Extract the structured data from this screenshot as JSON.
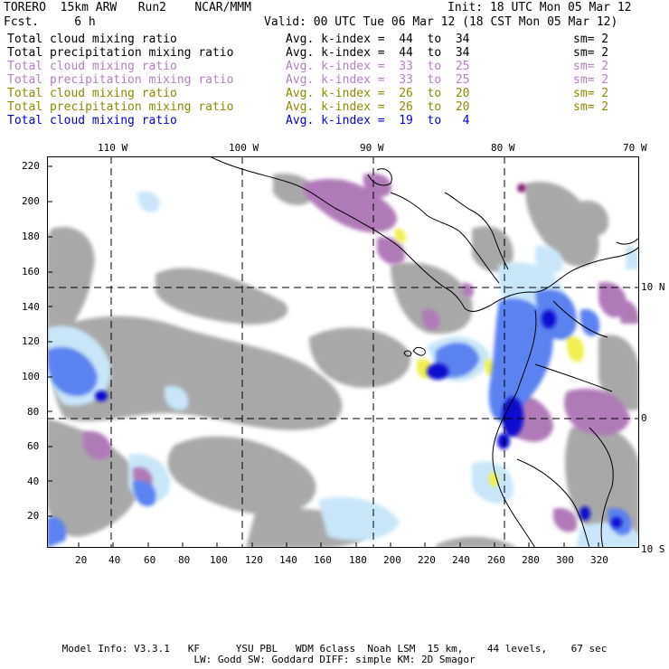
{
  "header": {
    "left_line1": "TORERO  15km ARW   Run2    NCAR/MMM",
    "left_line2": "Fcst.     6 h",
    "init": "Init: 18 UTC Mon 05 Mar 12",
    "valid": "Valid: 00 UTC Tue 06 Mar 12 (18 CST Mon 05 Mar 12)"
  },
  "legend": [
    {
      "field": "Total cloud mixing ratio",
      "kindex": "Avg. k-index =  44  to  34",
      "sm": "sm= 2",
      "color": "#000000"
    },
    {
      "field": "Total precipitation mixing ratio",
      "kindex": "Avg. k-index =  44  to  34",
      "sm": "sm= 2",
      "color": "#000000"
    },
    {
      "field": "Total cloud mixing ratio",
      "kindex": "Avg. k-index =  33  to  25",
      "sm": "sm= 2",
      "color": "#b57fc0"
    },
    {
      "field": "Total precipitation mixing ratio",
      "kindex": "Avg. k-index =  33  to  25",
      "sm": "sm= 2",
      "color": "#b57fc0"
    },
    {
      "field": "Total cloud mixing ratio",
      "kindex": "Avg. k-index =  26  to  20",
      "sm": "sm= 2",
      "color": "#8c8a00"
    },
    {
      "field": "Total precipitation mixing ratio",
      "kindex": "Avg. k-index =  26  to  20",
      "sm": "sm= 2",
      "color": "#8c8a00"
    },
    {
      "field": "Total cloud mixing ratio",
      "kindex": "Avg. k-index =  19  to   4",
      "sm": "",
      "color": "#0000dd"
    }
  ],
  "top_longitudes": [
    "110 W",
    "100 W",
    "90 W",
    "80 W",
    "70 W"
  ],
  "right_latitudes": [
    "10 N",
    "0",
    "10 S"
  ],
  "x_ticks": [
    "20",
    "40",
    "60",
    "80",
    "100",
    "120",
    "140",
    "160",
    "180",
    "200",
    "220",
    "240",
    "260",
    "280",
    "300",
    "320"
  ],
  "y_ticks": [
    "20",
    "40",
    "60",
    "80",
    "100",
    "120",
    "140",
    "160",
    "180",
    "200",
    "220"
  ],
  "footer": {
    "line1": "Model Info: V3.3.1   KF      YSU PBL   WDM 6class  Noah LSM  15 km,    44 levels,    67 sec",
    "line2": "LW: Godd SW: Goddard DIFF: simple KM: 2D Smagor"
  },
  "colors": {
    "gray_cloud": "#a8a8a8",
    "light_blue": "#c8e6f8",
    "mid_blue": "#5a82f0",
    "dark_blue": "#1010d0",
    "purple": "#b07ab8",
    "yellow": "#f0f050"
  }
}
